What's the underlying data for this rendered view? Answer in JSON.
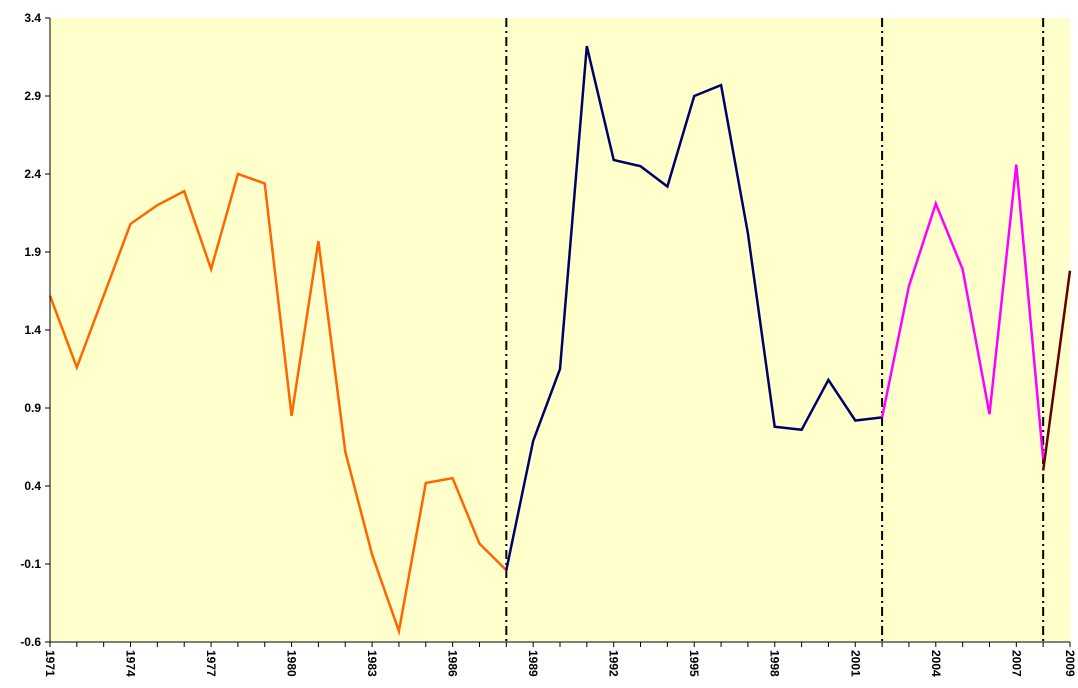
{
  "chart_data": {
    "type": "line",
    "title": "",
    "xlabel": "",
    "ylabel": "",
    "xlim": [
      1971,
      2009
    ],
    "ylim": [
      -0.6,
      3.4
    ],
    "y_ticks": [
      -0.6,
      -0.1,
      0.4,
      0.9,
      1.4,
      1.9,
      2.4,
      2.9,
      3.4
    ],
    "y_tick_labels": [
      "-0.6",
      "-0.1",
      "0.4",
      "0.9",
      "1.4",
      "1.9",
      "2.4",
      "2.9",
      "3.4"
    ],
    "x_ticks": [
      1971,
      1974,
      1977,
      1980,
      1983,
      1986,
      1989,
      1992,
      1995,
      1998,
      2001,
      2004,
      2007,
      2009
    ],
    "x_tick_labels": [
      "1971",
      "1974",
      "1977",
      "1980",
      "1983",
      "1986",
      "1989",
      "1992",
      "1995",
      "1998",
      "2001",
      "2004",
      "2007",
      "2009"
    ],
    "grid": false,
    "plot_background": "#ffffcc",
    "breakpoints": [
      1988,
      2002,
      2008
    ],
    "series": [
      {
        "color": "#ff6600",
        "x": [
          1971,
          1972,
          1973,
          1974,
          1975,
          1976,
          1977,
          1978,
          1979,
          1980,
          1981,
          1982,
          1983,
          1984,
          1985,
          1986,
          1987,
          1988
        ],
        "values": [
          1.62,
          1.16,
          1.62,
          2.08,
          2.2,
          2.29,
          1.79,
          2.4,
          2.34,
          0.85,
          1.97,
          0.62,
          -0.04,
          -0.53,
          0.42,
          0.45,
          0.03,
          -0.14
        ]
      },
      {
        "color": "#000066",
        "x": [
          1988,
          1989,
          1990,
          1991,
          1992,
          1993,
          1994,
          1995,
          1996,
          1997,
          1998,
          1999,
          2000,
          2001,
          2002
        ],
        "values": [
          -0.14,
          0.69,
          1.15,
          3.22,
          2.49,
          2.45,
          2.32,
          2.9,
          2.97,
          2.02,
          0.78,
          0.76,
          1.08,
          0.82,
          0.84
        ]
      },
      {
        "color": "#ff00ff",
        "x": [
          2002,
          2003,
          2004,
          2005,
          2006,
          2007,
          2008
        ],
        "values": [
          0.84,
          1.68,
          2.21,
          1.79,
          0.86,
          2.46,
          0.57
        ]
      },
      {
        "color": "#660000",
        "x": [
          2008,
          2009
        ],
        "values": [
          0.5,
          1.78
        ]
      }
    ]
  }
}
